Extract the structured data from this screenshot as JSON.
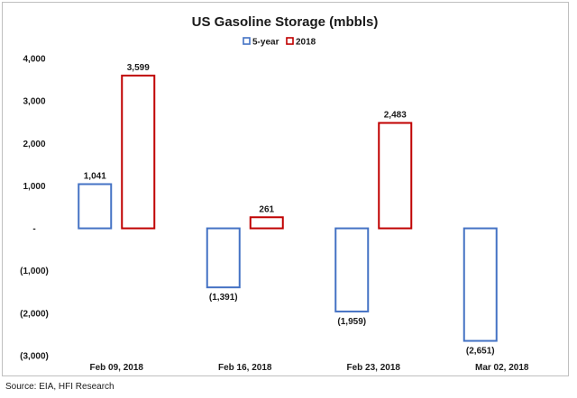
{
  "chart_data": {
    "type": "bar",
    "title": "US Gasoline Storage (mbbls)",
    "categories": [
      "Feb 09, 2018",
      "Feb 16, 2018",
      "Feb 23, 2018",
      "Mar 02, 2018"
    ],
    "series": [
      {
        "name": "5-year",
        "values": [
          1041,
          -1391,
          -1959,
          -2651
        ],
        "labels": [
          "1,041",
          "(1,391)",
          "(1,959)",
          "(2,651)"
        ],
        "color": "#4472c4"
      },
      {
        "name": "2018",
        "values": [
          3599,
          261,
          2483,
          null
        ],
        "labels": [
          "3,599",
          "261",
          "2,483",
          ""
        ],
        "color": "#c00000"
      }
    ],
    "ylim": [
      -3000,
      4000
    ],
    "yticks": [
      4000,
      3000,
      2000,
      1000,
      0,
      -1000,
      -2000,
      -3000
    ],
    "ytick_labels": [
      "4,000",
      "3,000",
      "2,000",
      "1,000",
      "-",
      "(1,000)",
      "(2,000)",
      "(3,000)"
    ],
    "xlabel": "",
    "ylabel": "",
    "legend_position": "top-center",
    "grid": false,
    "bar_style": "outlined"
  },
  "source": "Source: EIA, HFI Research"
}
